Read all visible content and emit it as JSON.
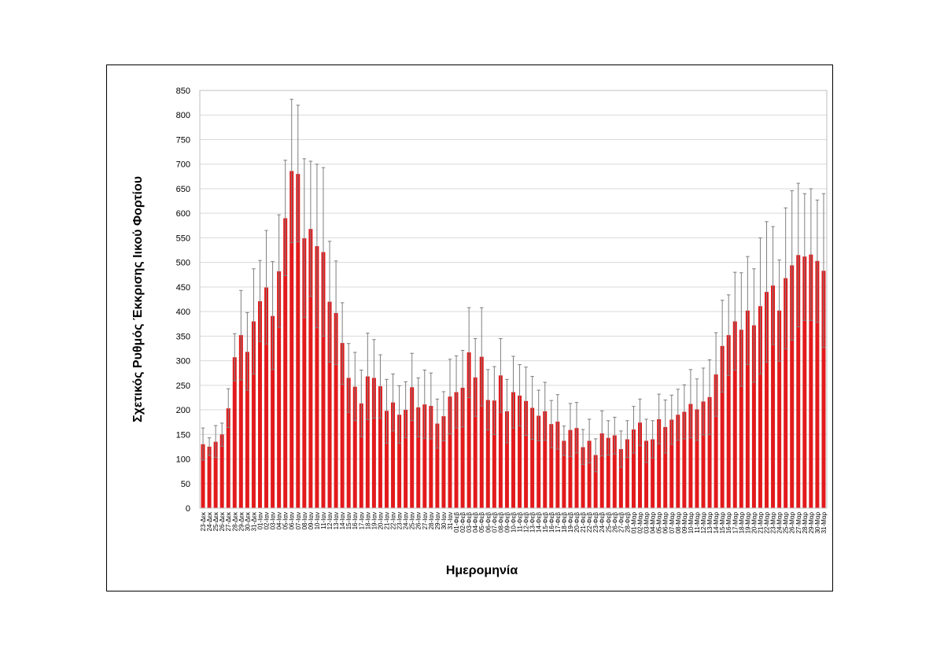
{
  "chart_data": {
    "type": "bar",
    "title": "",
    "xlabel": "Ημερομηνία",
    "ylabel": "Σχετικός Ρυθμός Έκκρισης Ιικού Φορτίου",
    "ylim": [
      0,
      850
    ],
    "yticks": [
      0,
      50,
      100,
      150,
      200,
      250,
      300,
      350,
      400,
      450,
      500,
      550,
      600,
      650,
      700,
      750,
      800,
      850
    ],
    "grid": true,
    "bar_color": "#e31a1c",
    "errorbar_color": "#7f7f7f",
    "categories": [
      "23-Δεκ",
      "24-Δεκ",
      "25-Δεκ",
      "26-Δεκ",
      "27-Δεκ",
      "28-Δεκ",
      "29-Δεκ",
      "30-Δεκ",
      "31-Δεκ",
      "01-Ιαν",
      "02-Ιαν",
      "03-Ιαν",
      "04-Ιαν",
      "05-Ιαν",
      "06-Ιαν",
      "07-Ιαν",
      "08-Ιαν",
      "09-Ιαν",
      "10-Ιαν",
      "11-Ιαν",
      "12-Ιαν",
      "13-Ιαν",
      "14-Ιαν",
      "15-Ιαν",
      "16-Ιαν",
      "17-Ιαν",
      "18-Ιαν",
      "19-Ιαν",
      "20-Ιαν",
      "21-Ιαν",
      "22-Ιαν",
      "23-Ιαν",
      "24-Ιαν",
      "25-Ιαν",
      "26-Ιαν",
      "27-Ιαν",
      "28-Ιαν",
      "29-Ιαν",
      "30-Ιαν",
      "31-Ιαν",
      "01-Φεβ",
      "02-Φεβ",
      "03-Φεβ",
      "04-Φεβ",
      "05-Φεβ",
      "06-Φεβ",
      "07-Φεβ",
      "08-Φεβ",
      "09-Φεβ",
      "10-Φεβ",
      "11-Φεβ",
      "12-Φεβ",
      "13-Φεβ",
      "14-Φεβ",
      "15-Φεβ",
      "16-Φεβ",
      "17-Φεβ",
      "18-Φεβ",
      "19-Φεβ",
      "20-Φεβ",
      "21-Φεβ",
      "22-Φεβ",
      "23-Φεβ",
      "24-Φεβ",
      "25-Φεβ",
      "26-Φεβ",
      "27-Φεβ",
      "28-Φεβ",
      "01-Μαρ",
      "02-Μαρ",
      "03-Μαρ",
      "04-Μαρ",
      "05-Μαρ",
      "06-Μαρ",
      "07-Μαρ",
      "08-Μαρ",
      "09-Μαρ",
      "10-Μαρ",
      "11-Μαρ",
      "12-Μαρ",
      "13-Μαρ",
      "14-Μαρ",
      "15-Μαρ",
      "16-Μαρ",
      "17-Μαρ",
      "18-Μαρ",
      "19-Μαρ",
      "20-Μαρ",
      "21-Μαρ",
      "22-Μαρ",
      "23-Μαρ",
      "24-Μαρ",
      "25-Μαρ",
      "26-Μαρ",
      "27-Μαρ",
      "28-Μαρ",
      "29-Μαρ",
      "30-Μαρ",
      "31-Μαρ"
    ],
    "values": [
      130,
      125,
      135,
      150,
      203,
      307,
      352,
      318,
      380,
      421,
      449,
      391,
      482,
      590,
      686,
      680,
      549,
      568,
      533,
      521,
      420,
      397,
      336,
      265,
      247,
      213,
      268,
      265,
      248,
      198,
      215,
      190,
      200,
      246,
      205,
      211,
      208,
      172,
      187,
      227,
      236,
      245,
      317,
      266,
      308,
      220,
      219,
      270,
      197,
      236,
      229,
      218,
      204,
      188,
      197,
      171,
      176,
      137,
      159,
      163,
      124,
      137,
      108,
      152,
      143,
      148,
      120,
      140,
      160,
      174,
      137,
      140,
      181,
      165,
      180,
      190,
      196,
      212,
      201,
      217,
      226,
      272,
      330,
      352,
      380,
      363,
      402,
      372,
      411,
      440,
      453,
      402,
      468,
      494,
      515,
      512,
      516,
      503,
      483
    ],
    "err_high": [
      163,
      143,
      168,
      173,
      243,
      355,
      443,
      398,
      487,
      504,
      565,
      502,
      597,
      708,
      832,
      820,
      711,
      706,
      700,
      693,
      543,
      503,
      418,
      335,
      317,
      281,
      356,
      343,
      312,
      262,
      273,
      249,
      257,
      315,
      265,
      281,
      275,
      222,
      237,
      303,
      310,
      321,
      408,
      345,
      408,
      282,
      288,
      345,
      262,
      309,
      292,
      287,
      268,
      240,
      256,
      219,
      231,
      167,
      213,
      215,
      160,
      181,
      141,
      198,
      178,
      185,
      157,
      178,
      207,
      222,
      181,
      178,
      232,
      220,
      230,
      242,
      251,
      282,
      263,
      285,
      302,
      357,
      423,
      434,
      480,
      479,
      512,
      487,
      550,
      583,
      573,
      505,
      611,
      646,
      661,
      640,
      650,
      627,
      640
    ],
    "err_low": [
      98,
      107,
      103,
      126,
      164,
      259,
      261,
      240,
      273,
      339,
      334,
      282,
      368,
      473,
      540,
      542,
      388,
      431,
      367,
      350,
      297,
      292,
      252,
      195,
      178,
      145,
      180,
      183,
      183,
      132,
      157,
      132,
      143,
      178,
      145,
      142,
      141,
      122,
      137,
      151,
      163,
      165,
      225,
      187,
      208,
      159,
      150,
      195,
      133,
      163,
      167,
      148,
      140,
      137,
      138,
      123,
      120,
      107,
      105,
      112,
      89,
      92,
      74,
      106,
      108,
      110,
      83,
      103,
      112,
      127,
      93,
      102,
      131,
      112,
      130,
      138,
      141,
      143,
      138,
      149,
      150,
      187,
      236,
      270,
      281,
      248,
      292,
      256,
      273,
      297,
      333,
      299,
      324,
      342,
      369,
      382,
      382,
      378,
      327
    ]
  }
}
